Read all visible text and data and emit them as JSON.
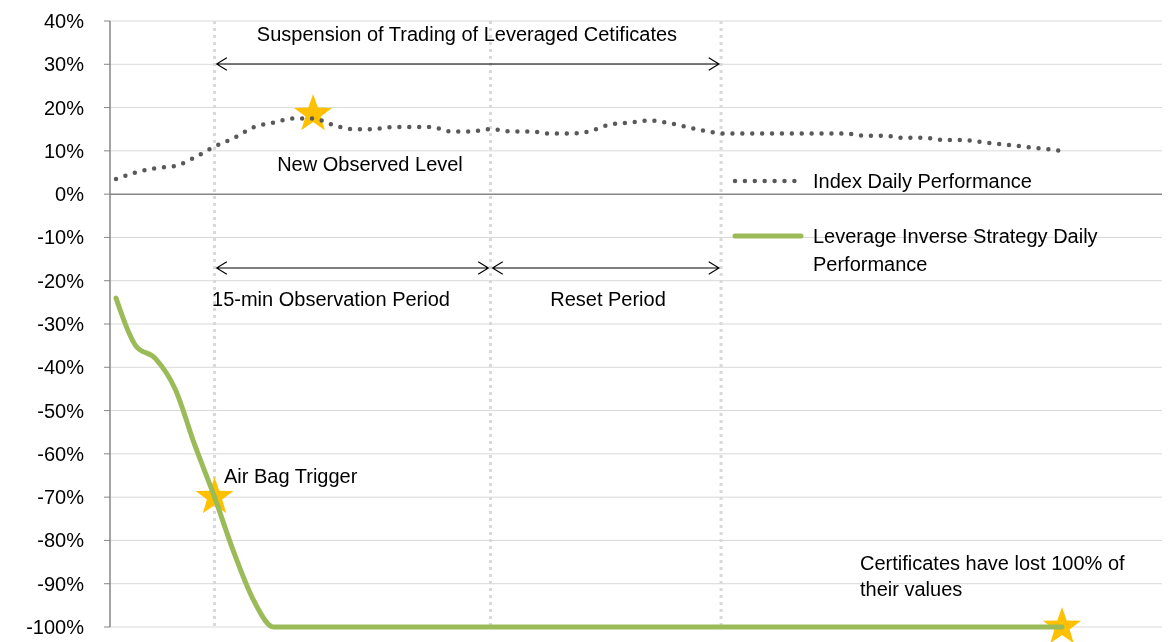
{
  "chart_data": {
    "type": "line",
    "categories": [
      null,
      null,
      null,
      null,
      null,
      null,
      null,
      null,
      null,
      null,
      null,
      null,
      null,
      null,
      null,
      null,
      null,
      null,
      null,
      null,
      null,
      null,
      null,
      null,
      null,
      null,
      null,
      null,
      null,
      null,
      null,
      null,
      null,
      null,
      null,
      null,
      null,
      null,
      null,
      null,
      null,
      null,
      null,
      null,
      null,
      null,
      null,
      null,
      null
    ],
    "series": [
      {
        "name": "Index Daily Performance",
        "color": "#595959",
        "line_style": "dotted",
        "values": [
          3.5,
          5,
          6,
          6.5,
          8.5,
          11,
          13,
          15.5,
          16.5,
          17.5,
          17.5,
          16,
          15,
          15,
          15.5,
          15.5,
          15.5,
          14.5,
          14.5,
          15,
          14.5,
          14.5,
          14,
          14,
          14.5,
          16,
          16.5,
          17,
          16.5,
          15.5,
          14.5,
          14,
          14,
          14,
          14,
          14,
          14,
          14,
          13.5,
          13.5,
          13,
          13,
          12.5,
          12.5,
          12,
          11.5,
          11,
          10.5,
          10
        ]
      },
      {
        "name": "Leverage Inverse Strategy Daily Performance",
        "color": "#9bbb59",
        "line_style": "solid",
        "values": [
          -24,
          -35,
          -38,
          -45,
          -58,
          -70,
          -83,
          -94,
          -100,
          -100,
          -100,
          -100,
          -100,
          -100,
          -100,
          -100,
          -100,
          -100,
          -100,
          -100,
          -100,
          -100,
          -100,
          -100,
          -100,
          -100,
          -100,
          -100,
          -100,
          -100,
          -100,
          -100,
          -100,
          -100,
          -100,
          -100,
          -100,
          -100,
          -100,
          -100,
          -100,
          -100,
          -100,
          -100,
          -100,
          -100,
          -100,
          -100,
          -100
        ]
      },
      {
        "type": "scatter",
        "marker": "star",
        "color": "#ffc000",
        "values": [
          null,
          null,
          null,
          null,
          null,
          -70,
          null,
          null,
          null,
          null,
          18.5,
          null,
          null,
          null,
          null,
          null,
          null,
          null,
          null,
          null,
          null,
          null,
          null,
          null,
          null,
          null,
          null,
          null,
          null,
          null,
          null,
          null,
          null,
          null,
          null,
          null,
          null,
          null,
          null,
          null,
          null,
          null,
          null,
          null,
          null,
          null,
          null,
          null,
          -100
        ]
      }
    ],
    "ylim": [
      -100,
      40
    ],
    "yticks": [
      {
        "value": 40,
        "label": "40%"
      },
      {
        "value": 30,
        "label": "30%"
      },
      {
        "value": 20,
        "label": "20%"
      },
      {
        "value": 10,
        "label": "10%"
      },
      {
        "value": 0,
        "label": "0%"
      },
      {
        "value": -10,
        "label": "-10%"
      },
      {
        "value": -20,
        "label": "-20%"
      },
      {
        "value": -30,
        "label": "-30%"
      },
      {
        "value": -40,
        "label": "-40%"
      },
      {
        "value": -50,
        "label": "-50%"
      },
      {
        "value": -60,
        "label": "-60%"
      },
      {
        "value": -70,
        "label": "-70%"
      },
      {
        "value": -80,
        "label": "-80%"
      },
      {
        "value": -90,
        "label": "-90%"
      },
      {
        "value": -100,
        "label": "-100%"
      }
    ],
    "grid": "y",
    "tick_labels": "y",
    "legend": "right",
    "annotations": [
      "Suspension of Trading of Leveraged Cetificates",
      "New Observed Level",
      "15-min Observation Period",
      "Reset Period",
      "Air Bag Trigger",
      "Certificates have lost 100% of their values"
    ]
  }
}
